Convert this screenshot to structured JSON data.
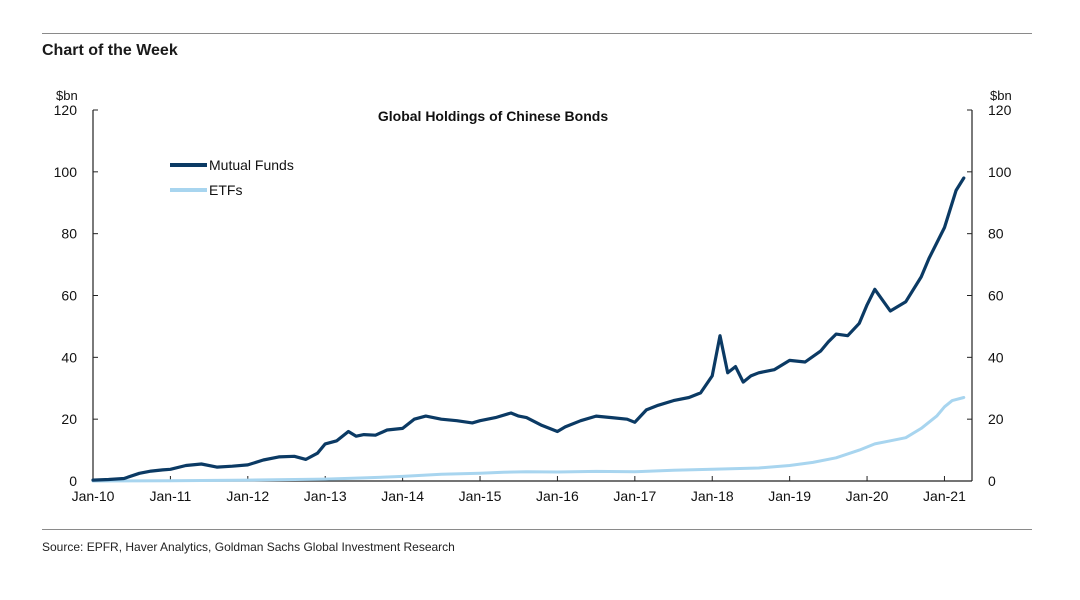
{
  "header": {
    "title": "Chart of the Week"
  },
  "footer": {
    "source": "Source: EPFR, Haver Analytics, Goldman Sachs Global Investment Research"
  },
  "colors": {
    "mutual_funds": "#0b3a64",
    "etfs": "#a8d5ef",
    "axis": "#222222",
    "rule": "#8a8a8a"
  },
  "chart_data": {
    "type": "line",
    "title": "Global Holdings of Chinese Bonds",
    "ylabel_left": "$bn",
    "ylabel_right": "$bn",
    "ylim": [
      0,
      120
    ],
    "yticks": [
      0,
      20,
      40,
      60,
      80,
      100,
      120
    ],
    "xlim": [
      2010.0,
      2021.33
    ],
    "xtick_labels": [
      "Jan-10",
      "Jan-11",
      "Jan-12",
      "Jan-13",
      "Jan-14",
      "Jan-15",
      "Jan-16",
      "Jan-17",
      "Jan-18",
      "Jan-19",
      "Jan-20",
      "Jan-21"
    ],
    "xtick_values": [
      2010,
      2011,
      2012,
      2013,
      2014,
      2015,
      2016,
      2017,
      2018,
      2019,
      2020,
      2021
    ],
    "legend_position": "top-left",
    "series": [
      {
        "name": "Mutual Funds",
        "color": "#0b3a64",
        "x": [
          2010.0,
          2010.2,
          2010.4,
          2010.6,
          2010.75,
          2010.9,
          2011.0,
          2011.2,
          2011.4,
          2011.6,
          2011.8,
          2012.0,
          2012.2,
          2012.4,
          2012.6,
          2012.75,
          2012.9,
          2013.0,
          2013.15,
          2013.3,
          2013.4,
          2013.5,
          2013.65,
          2013.8,
          2014.0,
          2014.15,
          2014.3,
          2014.5,
          2014.7,
          2014.9,
          2015.0,
          2015.2,
          2015.4,
          2015.5,
          2015.6,
          2015.8,
          2016.0,
          2016.1,
          2016.3,
          2016.5,
          2016.7,
          2016.9,
          2017.0,
          2017.15,
          2017.3,
          2017.5,
          2017.7,
          2017.85,
          2018.0,
          2018.1,
          2018.2,
          2018.3,
          2018.4,
          2018.5,
          2018.6,
          2018.8,
          2019.0,
          2019.2,
          2019.4,
          2019.5,
          2019.6,
          2019.75,
          2019.9,
          2020.0,
          2020.1,
          2020.3,
          2020.5,
          2020.7,
          2020.8,
          2021.0,
          2021.15,
          2021.25
        ],
        "values": [
          0.3,
          0.5,
          0.8,
          2.5,
          3.2,
          3.6,
          3.8,
          5.0,
          5.5,
          4.5,
          4.8,
          5.2,
          6.8,
          7.8,
          8.0,
          7.0,
          9.0,
          12.0,
          13.0,
          16.0,
          14.5,
          15.0,
          14.8,
          16.5,
          17.0,
          20.0,
          21.0,
          20.0,
          19.5,
          18.8,
          19.5,
          20.5,
          22.0,
          21.0,
          20.5,
          18.0,
          16.0,
          17.5,
          19.5,
          21.0,
          20.5,
          20.0,
          19.0,
          23.0,
          24.5,
          26.0,
          27.0,
          28.5,
          34.0,
          47.0,
          35.0,
          37.0,
          32.0,
          34.0,
          35.0,
          36.0,
          39.0,
          38.5,
          42.0,
          45.0,
          47.5,
          47.0,
          51.0,
          57.0,
          62.0,
          55.0,
          58.0,
          66.0,
          72.0,
          82.0,
          94.0,
          98.0
        ]
      },
      {
        "name": "ETFs",
        "color": "#a8d5ef",
        "x": [
          2010.0,
          2011.0,
          2012.0,
          2013.0,
          2013.5,
          2014.0,
          2014.5,
          2015.0,
          2015.3,
          2015.6,
          2016.0,
          2016.5,
          2017.0,
          2017.5,
          2018.0,
          2018.3,
          2018.6,
          2019.0,
          2019.3,
          2019.6,
          2019.9,
          2020.1,
          2020.3,
          2020.5,
          2020.7,
          2020.9,
          2021.0,
          2021.1,
          2021.25
        ],
        "values": [
          0.0,
          0.1,
          0.3,
          0.6,
          1.0,
          1.5,
          2.2,
          2.5,
          2.8,
          3.0,
          2.9,
          3.1,
          3.0,
          3.5,
          3.8,
          4.0,
          4.2,
          5.0,
          6.0,
          7.5,
          10.0,
          12.0,
          13.0,
          14.0,
          17.0,
          21.0,
          24.0,
          26.0,
          27.0
        ]
      }
    ]
  }
}
